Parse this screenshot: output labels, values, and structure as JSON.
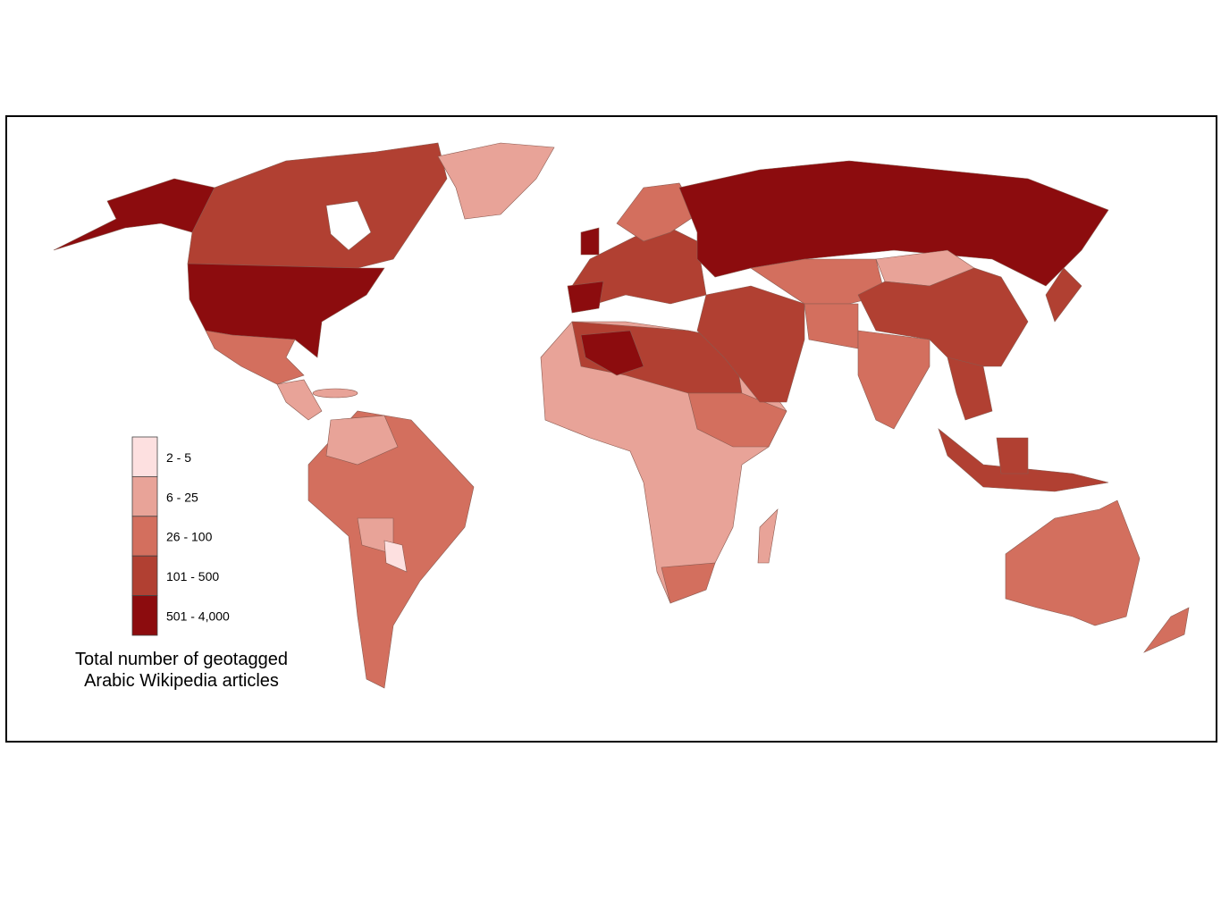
{
  "legend": {
    "items": [
      {
        "label": "2 - 5",
        "color": "#fde0e0"
      },
      {
        "label": "6 - 25",
        "color": "#e8a398"
      },
      {
        "label": "26 - 100",
        "color": "#d36f5e"
      },
      {
        "label": "101 - 500",
        "color": "#b14032"
      },
      {
        "label": "501 - 4,000",
        "color": "#8c0c0e"
      }
    ]
  },
  "title": [
    "Total number of geotagged",
    "Arabic Wikipedia articles"
  ]
}
